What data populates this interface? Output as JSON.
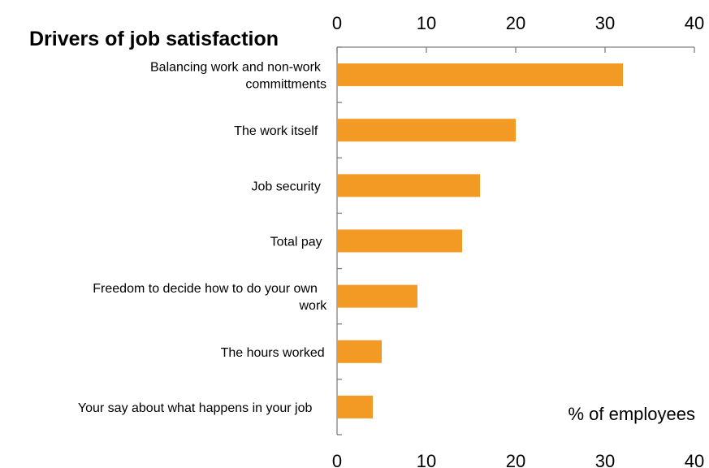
{
  "chart_data": {
    "type": "bar",
    "orientation": "horizontal",
    "title": "Drivers of job satisfaction",
    "unit_label": "% of employees",
    "categories": [
      [
        "Balancing work and non-work",
        "committments"
      ],
      [
        "The work itself"
      ],
      [
        "Job security"
      ],
      [
        "Total pay"
      ],
      [
        "Freedom to decide how to do your own",
        "work"
      ],
      [
        "The hours worked"
      ],
      [
        "Your say about what happens in your job"
      ]
    ],
    "values": [
      32,
      20,
      16,
      14,
      9,
      5,
      4
    ],
    "xlim": [
      0,
      40
    ],
    "xticks": [
      "0",
      "10",
      "20",
      "30",
      "40"
    ],
    "axis_labels_position": "top and bottom",
    "grid": false,
    "bar_color": "#F39A25",
    "axis_color": "#808080"
  }
}
